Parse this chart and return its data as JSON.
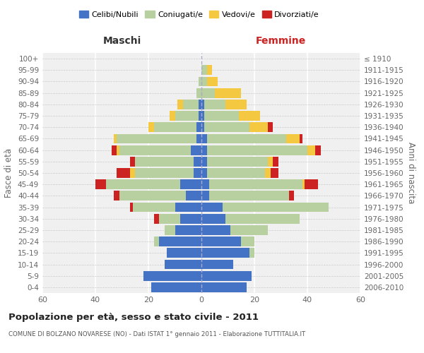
{
  "age_groups": [
    "0-4",
    "5-9",
    "10-14",
    "15-19",
    "20-24",
    "25-29",
    "30-34",
    "35-39",
    "40-44",
    "45-49",
    "50-54",
    "55-59",
    "60-64",
    "65-69",
    "70-74",
    "75-79",
    "80-84",
    "85-89",
    "90-94",
    "95-99",
    "100+"
  ],
  "birth_years": [
    "2006-2010",
    "2001-2005",
    "1996-2000",
    "1991-1995",
    "1986-1990",
    "1981-1985",
    "1976-1980",
    "1971-1975",
    "1966-1970",
    "1961-1965",
    "1956-1960",
    "1951-1955",
    "1946-1950",
    "1941-1945",
    "1936-1940",
    "1931-1935",
    "1926-1930",
    "1921-1925",
    "1916-1920",
    "1911-1915",
    "≤ 1910"
  ],
  "colors": {
    "celibe": "#4472c4",
    "coniugato": "#b8cfa0",
    "vedovo": "#f5c842",
    "divorziato": "#cc2222"
  },
  "maschi": {
    "celibe": [
      19,
      22,
      14,
      13,
      16,
      10,
      8,
      10,
      6,
      8,
      3,
      3,
      4,
      2,
      2,
      1,
      1,
      0,
      0,
      0,
      0
    ],
    "coniugato": [
      0,
      0,
      0,
      0,
      2,
      4,
      8,
      16,
      25,
      28,
      22,
      22,
      27,
      30,
      16,
      9,
      6,
      2,
      1,
      0,
      0
    ],
    "vedovo": [
      0,
      0,
      0,
      0,
      0,
      0,
      0,
      0,
      0,
      0,
      2,
      0,
      1,
      1,
      2,
      2,
      2,
      0,
      0,
      0,
      0
    ],
    "divorziato": [
      0,
      0,
      0,
      0,
      0,
      0,
      2,
      1,
      2,
      4,
      5,
      2,
      2,
      0,
      0,
      0,
      0,
      0,
      0,
      0,
      0
    ]
  },
  "femmine": {
    "celibe": [
      17,
      19,
      12,
      18,
      15,
      11,
      9,
      8,
      3,
      3,
      2,
      2,
      2,
      2,
      1,
      1,
      1,
      0,
      0,
      0,
      0
    ],
    "coniugato": [
      0,
      0,
      0,
      2,
      5,
      14,
      28,
      40,
      30,
      35,
      22,
      23,
      38,
      30,
      17,
      13,
      8,
      5,
      2,
      2,
      0
    ],
    "vedovo": [
      0,
      0,
      0,
      0,
      0,
      0,
      0,
      0,
      0,
      1,
      2,
      2,
      3,
      5,
      7,
      8,
      8,
      10,
      4,
      2,
      0
    ],
    "divorziato": [
      0,
      0,
      0,
      0,
      0,
      0,
      0,
      0,
      2,
      5,
      3,
      2,
      2,
      1,
      2,
      0,
      0,
      0,
      0,
      0,
      0
    ]
  },
  "title": "Popolazione per età, sesso e stato civile - 2011",
  "subtitle": "COMUNE DI BOLZANO NOVARESE (NO) - Dati ISTAT 1° gennaio 2011 - Elaborazione TUTTITALIA.IT",
  "xlabel_left": "Maschi",
  "xlabel_right": "Femmine",
  "ylabel_left": "Fasce di età",
  "ylabel_right": "Anni di nascita",
  "legend_labels": [
    "Celibi/Nubili",
    "Coniugati/e",
    "Vedovi/e",
    "Divorziati/e"
  ],
  "xlim": 60,
  "background_color": "#ffffff",
  "grid_color": "#cccccc",
  "bar_height": 0.85
}
